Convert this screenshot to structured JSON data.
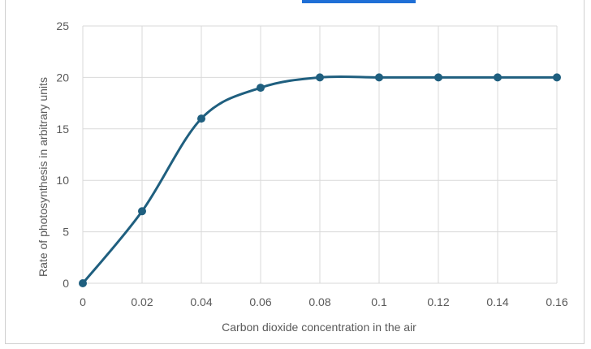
{
  "chart_data": {
    "type": "line",
    "title": "",
    "xlabel": "Carbon dioxide concentration in the air",
    "ylabel": "Rate of photosynthesis in arbitrary units",
    "x": [
      0,
      0.02,
      0.04,
      0.06,
      0.08,
      0.1,
      0.12,
      0.14,
      0.16
    ],
    "x_tick_labels": [
      "0",
      "0.02",
      "0.04",
      "0.06",
      "0.08",
      "0.1",
      "0.12",
      "0.14",
      "0.16"
    ],
    "y_tick_labels": [
      "0",
      "5",
      "10",
      "15",
      "20",
      "25"
    ],
    "xlim": [
      0,
      0.16
    ],
    "ylim": [
      0,
      25
    ],
    "grid": true,
    "smooth": true,
    "series": [
      {
        "values": [
          0,
          7,
          16,
          19,
          20,
          20,
          20,
          20,
          20
        ],
        "color": "#1f5f7f"
      }
    ]
  },
  "colors": {
    "series": "#1f5f7f",
    "grid": "#d9d9d9",
    "accent_strip": "#1f6fd6"
  }
}
